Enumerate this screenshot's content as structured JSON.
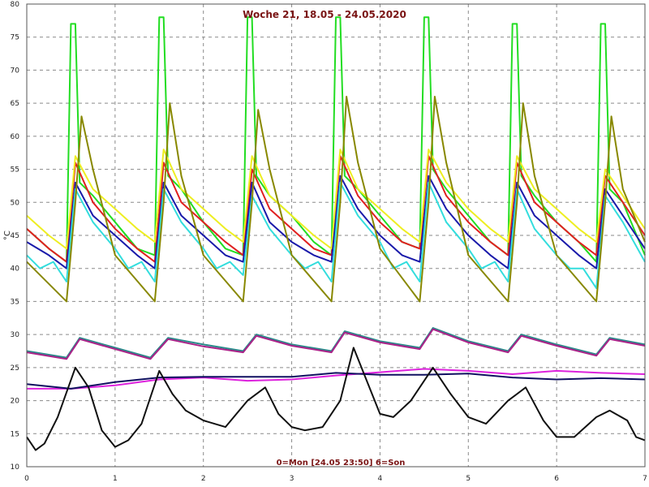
{
  "chart_data": {
    "type": "line",
    "title": "Woche 21, 18.05 - 24.05.2020",
    "footer": "0=Mon [24.05 23:50] 6=Son",
    "ylabel": "°C",
    "xlim": [
      0,
      7
    ],
    "ylim": [
      10,
      80
    ],
    "xticks": [
      "0",
      "1",
      "2",
      "3",
      "4",
      "5",
      "6",
      "7"
    ],
    "yticks": [
      "10",
      "15",
      "20",
      "25",
      "30",
      "35",
      "40",
      "45",
      "50",
      "55",
      "60",
      "65",
      "70",
      "75",
      "80"
    ],
    "grid": true,
    "series": [
      {
        "color": "#22dd22",
        "x": [
          0,
          0.25,
          0.45,
          0.5,
          0.55,
          0.6,
          0.75,
          1.0,
          1.25,
          1.45,
          1.5,
          1.55,
          1.6,
          1.75,
          2.0,
          2.25,
          2.45,
          2.5,
          2.55,
          2.6,
          2.75,
          3.0,
          3.25,
          3.45,
          3.5,
          3.55,
          3.6,
          3.75,
          4.0,
          4.25,
          4.45,
          4.5,
          4.55,
          4.6,
          4.75,
          5.0,
          5.25,
          5.45,
          5.5,
          5.55,
          5.6,
          5.75,
          6.0,
          6.25,
          6.45,
          6.5,
          6.55,
          6.6,
          6.75,
          7.0
        ],
        "y": [
          46,
          43,
          41,
          77,
          77,
          53,
          51,
          47,
          43,
          42,
          78,
          78,
          54,
          52,
          47,
          43,
          42,
          78,
          78,
          54,
          51,
          48,
          44,
          42,
          78,
          78,
          54,
          52,
          48,
          44,
          43,
          78,
          78,
          55,
          52,
          48,
          44,
          42,
          77,
          77,
          54,
          51,
          47,
          44,
          41,
          77,
          77,
          52,
          50,
          42
        ]
      },
      {
        "color": "#e02020",
        "x": [
          0,
          0.25,
          0.45,
          0.55,
          0.75,
          1.0,
          1.25,
          1.45,
          1.55,
          1.75,
          2.0,
          2.25,
          2.45,
          2.55,
          2.75,
          3.0,
          3.25,
          3.45,
          3.55,
          3.75,
          4.0,
          4.25,
          4.45,
          4.55,
          4.75,
          5.0,
          5.25,
          5.45,
          5.55,
          5.75,
          6.0,
          6.25,
          6.45,
          6.55,
          6.75,
          7.0
        ],
        "y": [
          46,
          43,
          41,
          56,
          50,
          46,
          43,
          41,
          56,
          50,
          47,
          44,
          42,
          55,
          49,
          46,
          43,
          42,
          57,
          51,
          47,
          44,
          43,
          57,
          51,
          47,
          44,
          42,
          56,
          50,
          47,
          44,
          42,
          54,
          50,
          45
        ]
      },
      {
        "color": "#eeee22",
        "x": [
          0,
          0.25,
          0.45,
          0.55,
          0.75,
          1.0,
          1.25,
          1.45,
          1.55,
          1.75,
          2.0,
          2.25,
          2.45,
          2.55,
          2.75,
          3.0,
          3.25,
          3.45,
          3.55,
          3.75,
          4.0,
          4.25,
          4.45,
          4.55,
          4.75,
          5.0,
          5.25,
          5.45,
          5.55,
          5.75,
          6.0,
          6.25,
          6.45,
          6.55,
          6.75,
          7.0
        ],
        "y": [
          48,
          45,
          43,
          57,
          52,
          49,
          46,
          44,
          58,
          52,
          49,
          46,
          44,
          57,
          51,
          48,
          45,
          43,
          58,
          52,
          49,
          46,
          44,
          58,
          53,
          49,
          46,
          44,
          57,
          52,
          49,
          46,
          44,
          55,
          51,
          46
        ]
      },
      {
        "color": "#1a1aaa",
        "x": [
          0,
          0.25,
          0.45,
          0.55,
          0.75,
          1.0,
          1.25,
          1.45,
          1.55,
          1.75,
          2.0,
          2.25,
          2.45,
          2.55,
          2.75,
          3.0,
          3.25,
          3.45,
          3.55,
          3.75,
          4.0,
          4.25,
          4.45,
          4.55,
          4.75,
          5.0,
          5.25,
          5.45,
          5.55,
          5.75,
          6.0,
          6.25,
          6.45,
          6.55,
          6.75,
          7.0
        ],
        "y": [
          44,
          42,
          40,
          53,
          48,
          45,
          42,
          40,
          53,
          48,
          45,
          42,
          41,
          53,
          47,
          44,
          42,
          41,
          54,
          49,
          45,
          42,
          41,
          54,
          49,
          45,
          42,
          40,
          53,
          48,
          45,
          42,
          40,
          52,
          48,
          43
        ]
      },
      {
        "color": "#33dddd",
        "x": [
          0,
          0.15,
          0.3,
          0.45,
          0.55,
          0.75,
          1.0,
          1.15,
          1.3,
          1.45,
          1.55,
          1.75,
          2.0,
          2.15,
          2.3,
          2.45,
          2.55,
          2.75,
          3.0,
          3.15,
          3.3,
          3.45,
          3.55,
          3.75,
          4.0,
          4.15,
          4.3,
          4.45,
          4.55,
          4.75,
          5.0,
          5.15,
          5.3,
          5.45,
          5.55,
          5.75,
          6.0,
          6.15,
          6.3,
          6.45,
          6.55,
          6.75,
          7.0
        ],
        "y": [
          42,
          40,
          41,
          38,
          52,
          47,
          43,
          40,
          41,
          38,
          52,
          47,
          43,
          40,
          41,
          39,
          51,
          46,
          42,
          40,
          41,
          38,
          53,
          48,
          44,
          40,
          41,
          38,
          53,
          47,
          43,
          40,
          41,
          38,
          52,
          46,
          42,
          40,
          40,
          37,
          51,
          47,
          41
        ]
      },
      {
        "color": "#888800",
        "x": [
          0,
          0.45,
          0.55,
          0.62,
          0.75,
          1.0,
          1.45,
          1.55,
          1.62,
          1.75,
          2.0,
          2.45,
          2.55,
          2.62,
          2.75,
          3.0,
          3.45,
          3.55,
          3.62,
          3.75,
          4.0,
          4.45,
          4.55,
          4.62,
          4.75,
          5.0,
          5.45,
          5.55,
          5.62,
          5.75,
          6.0,
          6.45,
          6.55,
          6.62,
          6.75,
          7.0
        ],
        "y": [
          41,
          35,
          50,
          63,
          55,
          42,
          35,
          50,
          65,
          54,
          42,
          35,
          50,
          64,
          55,
          42,
          35,
          50,
          66,
          56,
          43,
          35,
          50,
          66,
          56,
          42,
          35,
          50,
          65,
          54,
          42,
          35,
          50,
          63,
          52,
          44
        ]
      },
      {
        "color": "#2a8a8a",
        "x": [
          0,
          0.45,
          0.6,
          1.0,
          1.4,
          1.6,
          2.0,
          2.45,
          2.6,
          3.0,
          3.45,
          3.6,
          4.0,
          4.45,
          4.6,
          5.0,
          5.45,
          5.6,
          6.0,
          6.45,
          6.6,
          7.0
        ],
        "y": [
          27.5,
          26.5,
          29.5,
          28,
          26.5,
          29.5,
          28.5,
          27.5,
          30,
          28.5,
          27.5,
          30.5,
          29,
          28,
          31,
          29,
          27.5,
          30,
          28.5,
          27,
          29.5,
          28.5
        ]
      },
      {
        "color": "#aa2288",
        "x": [
          0,
          0.45,
          0.6,
          1.0,
          1.4,
          1.6,
          2.0,
          2.45,
          2.6,
          3.0,
          3.45,
          3.6,
          4.0,
          4.45,
          4.6,
          5.0,
          5.45,
          5.6,
          6.0,
          6.45,
          6.6,
          7.0
        ],
        "y": [
          27.3,
          26.3,
          29.3,
          27.8,
          26.3,
          29.3,
          28.2,
          27.3,
          29.8,
          28.3,
          27.3,
          30.3,
          28.8,
          27.8,
          30.8,
          28.8,
          27.3,
          29.8,
          28.3,
          26.8,
          29.3,
          28.3
        ]
      },
      {
        "color": "#dd22dd",
        "x": [
          0,
          0.5,
          1.0,
          1.5,
          2.0,
          2.5,
          3.0,
          3.5,
          4.0,
          4.5,
          5.0,
          5.5,
          6.0,
          6.5,
          7.0
        ],
        "y": [
          21.8,
          21.8,
          22.3,
          23.2,
          23.5,
          23,
          23.2,
          23.8,
          24.3,
          24.8,
          24.5,
          24,
          24.5,
          24.2,
          24
        ]
      },
      {
        "color": "#101060",
        "x": [
          0,
          0.5,
          1.0,
          1.5,
          2.0,
          2.5,
          3.0,
          3.5,
          4.0,
          4.5,
          5.0,
          5.5,
          6.0,
          6.5,
          7.0
        ],
        "y": [
          22.5,
          21.8,
          22.8,
          23.5,
          23.6,
          23.6,
          23.6,
          24.2,
          23.9,
          23.9,
          24.1,
          23.5,
          23.2,
          23.4,
          23.2
        ]
      },
      {
        "color": "#111111",
        "x": [
          0,
          0.1,
          0.2,
          0.35,
          0.55,
          0.7,
          0.85,
          1.0,
          1.15,
          1.3,
          1.5,
          1.65,
          1.8,
          2.0,
          2.25,
          2.5,
          2.7,
          2.85,
          3.0,
          3.15,
          3.35,
          3.55,
          3.7,
          3.85,
          4.0,
          4.15,
          4.35,
          4.6,
          4.8,
          5.0,
          5.2,
          5.45,
          5.65,
          5.85,
          6.0,
          6.2,
          6.45,
          6.6,
          6.8,
          6.9,
          7.0
        ],
        "y": [
          14.5,
          12.5,
          13.5,
          17.5,
          25,
          22,
          15.5,
          13,
          14,
          16.5,
          24.5,
          21,
          18.5,
          17,
          16,
          20,
          22,
          18,
          16,
          15.5,
          16,
          20,
          28,
          23,
          18,
          17.5,
          20,
          25,
          21,
          17.5,
          16.5,
          20,
          22,
          17,
          14.5,
          14.5,
          17.5,
          18.5,
          17,
          14.5,
          14
        ]
      }
    ]
  }
}
